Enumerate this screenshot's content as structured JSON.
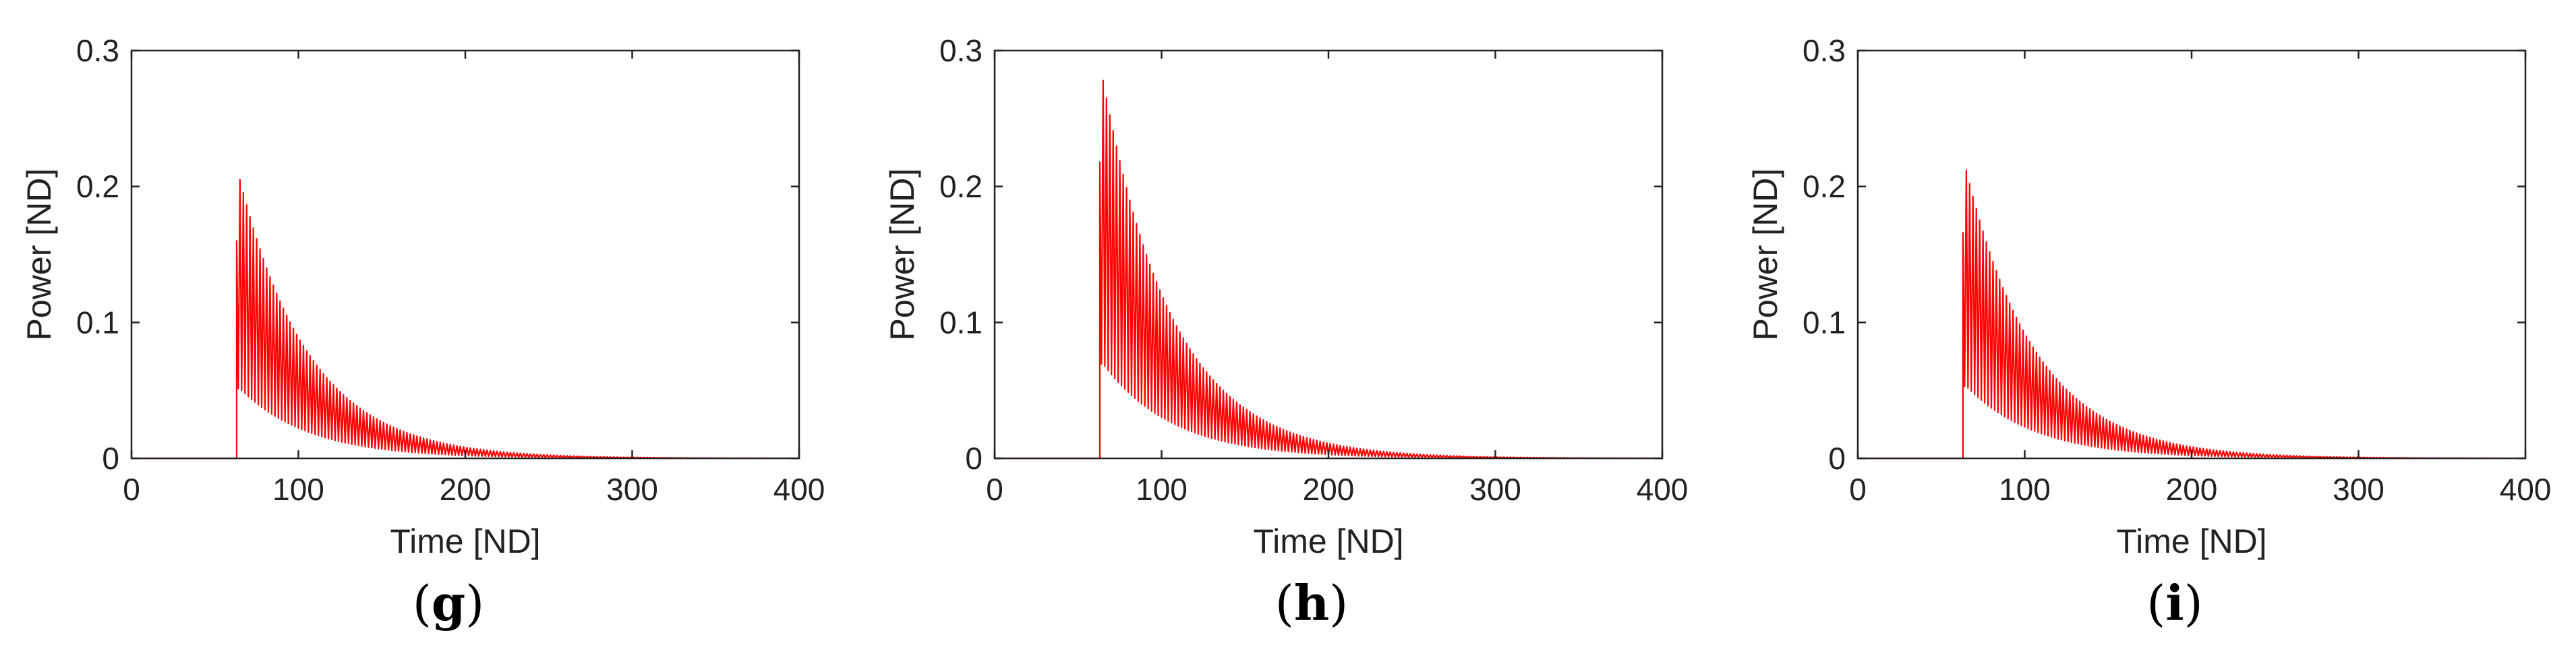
{
  "chart_data": [
    {
      "type": "line",
      "panel_label": "g",
      "xlabel": "Time [ND]",
      "ylabel": "Power [ND]",
      "xlim": [
        0,
        400
      ],
      "ylim": [
        0,
        0.3
      ],
      "xticks": [
        0,
        100,
        200,
        300,
        400
      ],
      "yticks": [
        0,
        0.1,
        0.2,
        0.3
      ],
      "grid": false,
      "series_color": "#ff0000",
      "pulse": {
        "onset": 63,
        "peak": 0.205,
        "first_pulse": 0.16,
        "period": 2.0,
        "decay_time": 42,
        "trough_ratio": 0.25
      }
    },
    {
      "type": "line",
      "panel_label": "h",
      "xlabel": "Time [ND]",
      "ylabel": "Power [ND]",
      "xlim": [
        0,
        400
      ],
      "ylim": [
        0,
        0.3
      ],
      "xticks": [
        0,
        100,
        200,
        300,
        400
      ],
      "yticks": [
        0,
        0.1,
        0.2,
        0.3
      ],
      "grid": false,
      "series_color": "#ff0000",
      "pulse": {
        "onset": 63,
        "peak": 0.278,
        "first_pulse": 0.218,
        "period": 2.0,
        "decay_time": 42,
        "trough_ratio": 0.25
      }
    },
    {
      "type": "line",
      "panel_label": "i",
      "xlabel": "Time [ND]",
      "ylabel": "Power [ND]",
      "xlim": [
        0,
        400
      ],
      "ylim": [
        0,
        0.3
      ],
      "xticks": [
        0,
        100,
        200,
        300,
        400
      ],
      "yticks": [
        0,
        0.1,
        0.2,
        0.3
      ],
      "grid": false,
      "series_color": "#ff0000",
      "pulse": {
        "onset": 63,
        "peak": 0.212,
        "first_pulse": 0.166,
        "period": 2.0,
        "decay_time": 42,
        "trough_ratio": 0.25
      }
    }
  ]
}
